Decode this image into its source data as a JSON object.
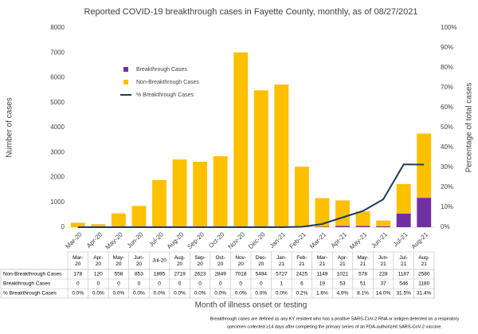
{
  "chart_data": {
    "type": "bar",
    "title": "Reported COVID-19 breakthrough cases in Fayette County, monthly, as of 08/27/2021",
    "ylabel": "Number of cases",
    "y2label": "Percentage of total cases",
    "xlabel": "Month of illness onset or testing",
    "footnote": [
      "Breakthrough cases are defined as any KY resident who has a positive SARS-CoV-2 RNA or antigen detected on a respiratory",
      "specimen collected ≥14 days after completing the primary series of an FDA-authorized SARS-CoV-2 vaccine."
    ],
    "categories": [
      "Mar-20",
      "Apr-20",
      "May-20",
      "Jun-20",
      "Jul-20",
      "Aug-20",
      "Sep-20",
      "Oct-20",
      "Nov-20",
      "Dec-20",
      "Jan-21",
      "Feb-21",
      "Mar-21",
      "Apr-21",
      "May-21",
      "Jun-21",
      "Jul-21",
      "Aug-21"
    ],
    "series": [
      {
        "name": "Breakthrough Cases",
        "color": "#7030a0",
        "type": "bar",
        "values": [
          0,
          0,
          0,
          0,
          0,
          0,
          0,
          0,
          0,
          0,
          1,
          6,
          19,
          53,
          51,
          37,
          546,
          1180
        ]
      },
      {
        "name": "Non-Breakthrough Cases",
        "color": "#ffc000",
        "type": "bar",
        "values": [
          178,
          120,
          558,
          853,
          1895,
          2719,
          2623,
          2849,
          7018,
          5494,
          5727,
          2425,
          1149,
          1021,
          578,
          228,
          1187,
          2580
        ]
      },
      {
        "name": "% Breakthrough Cases",
        "color": "#1f3864",
        "type": "line",
        "axis": "y2",
        "values": [
          0,
          0,
          0,
          0,
          0,
          0,
          0,
          0,
          0,
          0,
          0,
          0.2,
          1.6,
          4.9,
          8.1,
          14.0,
          31.5,
          31.4
        ],
        "value_labels": [
          "0.0%",
          "0.0%",
          "0.0%",
          "0.0%",
          "0.0%",
          "0.0%",
          "0.0%",
          "0.0%",
          "0.0%",
          "0.0%",
          "0.0%",
          "0.2%",
          "1.6%",
          "4.9%",
          "8.1%",
          "14.0%",
          "31.5%",
          "31.4%"
        ]
      }
    ],
    "stacked": true,
    "ylim": [
      0,
      8000
    ],
    "yticks": [
      0,
      1000,
      2000,
      3000,
      4000,
      5000,
      6000,
      7000,
      8000
    ],
    "y2lim": [
      0,
      100
    ],
    "y2ticks": [
      {
        "value": 0,
        "label": "0%"
      },
      {
        "value": 10,
        "label": "10%"
      },
      {
        "value": 20,
        "label": "20%"
      },
      {
        "value": 30,
        "label": "30%"
      },
      {
        "value": 40,
        "label": "40%"
      },
      {
        "value": 50,
        "label": "50%"
      },
      {
        "value": 60,
        "label": "60%"
      },
      {
        "value": 70,
        "label": "70%"
      },
      {
        "value": 80,
        "label": "80%"
      },
      {
        "value": 90,
        "label": "90%"
      },
      {
        "value": 100,
        "label": "100%"
      }
    ],
    "grid": false
  }
}
